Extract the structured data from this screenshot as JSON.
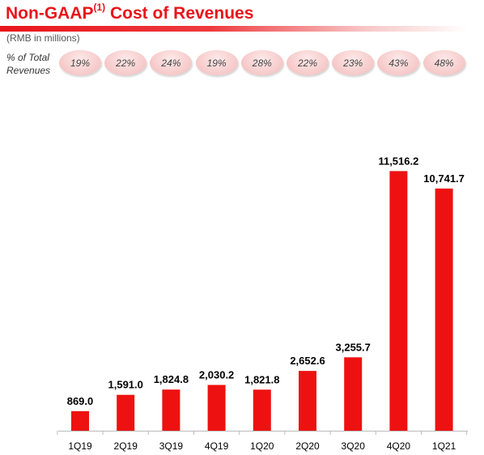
{
  "header": {
    "title_main": "Non-GAAP",
    "title_sup": "(1)",
    "title_rest": " Cost of Revenues",
    "subtitle": "(RMB in millions)",
    "pct_label": "% of Total Revenues"
  },
  "colors": {
    "bar": "#ee1111",
    "title": "#e8151b",
    "axis": "#bbbbbb"
  },
  "pct_of_total_revenues": [
    "19%",
    "22%",
    "24%",
    "19%",
    "28%",
    "22%",
    "23%",
    "43%",
    "48%"
  ],
  "chart_data": {
    "type": "bar",
    "title": "Non-GAAP(1) Cost of Revenues",
    "subtitle": "(RMB in millions)",
    "categories": [
      "1Q19",
      "2Q19",
      "3Q19",
      "4Q19",
      "1Q20",
      "2Q20",
      "3Q20",
      "4Q20",
      "1Q21"
    ],
    "values": [
      869.0,
      1591.0,
      1824.8,
      2030.2,
      1821.8,
      2652.6,
      3255.7,
      11516.2,
      10741.7
    ],
    "value_labels": [
      "869.0",
      "1,591.0",
      "1,824.8",
      "2,030.2",
      "1,821.8",
      "2,652.6",
      "3,255.7",
      "11,516.2",
      "10,741.7"
    ],
    "ylim": [
      0,
      13000
    ],
    "grid": false,
    "legend": "none"
  }
}
